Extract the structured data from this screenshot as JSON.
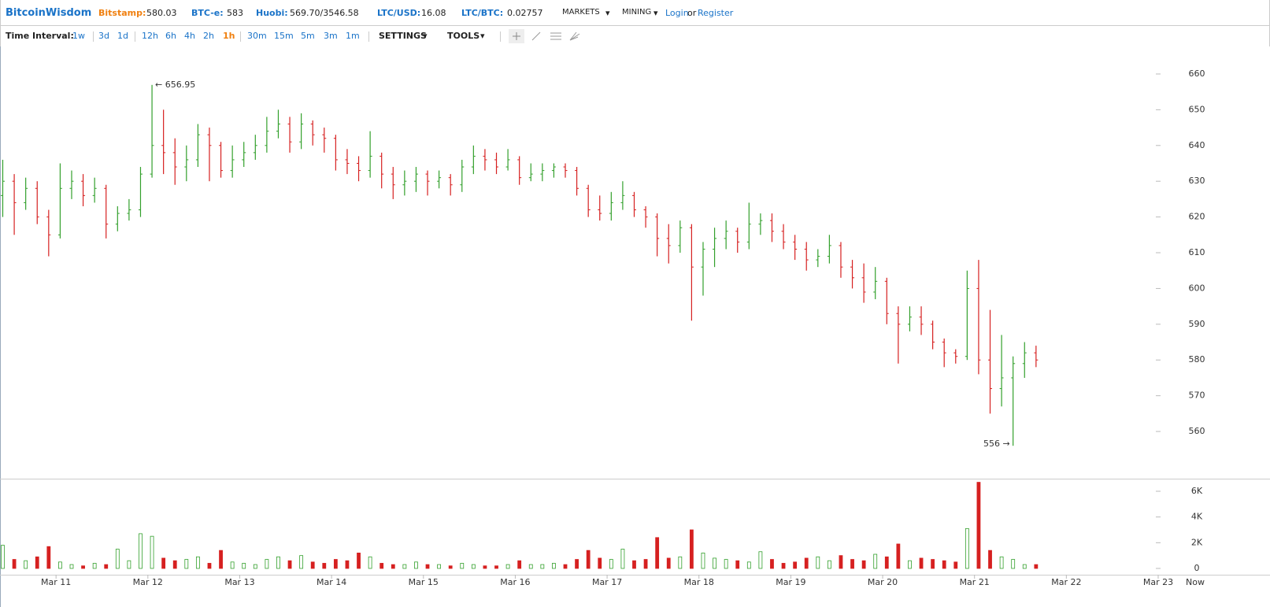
{
  "header": {
    "brand": "BitcoinWisdom",
    "tickers": [
      {
        "label": "Bitstamp:",
        "value": "580.03"
      },
      {
        "label": "BTC-e:",
        "value": "583"
      },
      {
        "label": "Huobi:",
        "value": "569.70/3546.58"
      },
      {
        "label": "LTC/USD:",
        "value": "16.08"
      },
      {
        "label": "LTC/BTC:",
        "value": "0.02757"
      }
    ],
    "menus": [
      "MARKETS",
      "MINING"
    ],
    "login": "Login",
    "or": "or",
    "register": "Register"
  },
  "toolbar": {
    "label": "Time Interval:",
    "intervals": [
      "1w",
      "3d",
      "1d",
      "12h",
      "6h",
      "4h",
      "2h",
      "1h",
      "30m",
      "15m",
      "5m",
      "3m",
      "1m"
    ],
    "active": "1h",
    "menus": [
      "SETTINGS",
      "TOOLS"
    ]
  },
  "chart_data": {
    "type": "ohlc",
    "colors": {
      "up": "#33a02c",
      "down": "#d62020"
    },
    "x": [
      10.42,
      10.545,
      10.67,
      10.795,
      10.92,
      11.045,
      11.17,
      11.295,
      11.42,
      11.545,
      11.67,
      11.795,
      11.92,
      12.045,
      12.17,
      12.295,
      12.42,
      12.545,
      12.67,
      12.795,
      12.92,
      13.045,
      13.17,
      13.295,
      13.42,
      13.545,
      13.67,
      13.795,
      13.92,
      14.045,
      14.17,
      14.295,
      14.42,
      14.545,
      14.67,
      14.795,
      14.92,
      15.045,
      15.17,
      15.295,
      15.42,
      15.545,
      15.67,
      15.795,
      15.92,
      16.045,
      16.17,
      16.295,
      16.42,
      16.545,
      16.67,
      16.795,
      16.92,
      17.045,
      17.17,
      17.295,
      17.42,
      17.545,
      17.67,
      17.795,
      17.92,
      18.045,
      18.17,
      18.295,
      18.42,
      18.545,
      18.67,
      18.795,
      18.92,
      19.045,
      19.17,
      19.295,
      19.42,
      19.545,
      19.67,
      19.795,
      19.92,
      20.045,
      20.17,
      20.295,
      20.42,
      20.545,
      20.67,
      20.795,
      20.92,
      21.045,
      21.17,
      21.295,
      21.42,
      21.545,
      21.67
    ],
    "open": [
      626,
      630,
      624,
      628,
      620,
      615,
      628,
      630,
      626,
      628,
      618,
      621,
      622,
      632,
      640,
      638,
      634,
      636,
      643,
      640,
      633,
      636,
      638,
      640,
      644,
      646,
      641,
      646,
      643,
      642,
      636,
      635,
      633,
      637,
      632,
      629,
      630,
      632,
      630,
      631,
      629,
      634,
      637,
      636,
      634,
      636,
      631,
      632,
      633,
      634,
      633,
      628,
      622,
      621,
      624,
      626,
      622,
      620,
      614,
      612,
      617,
      606,
      611,
      614,
      616,
      613,
      618,
      619,
      616,
      613,
      611,
      608,
      609,
      612,
      606,
      603,
      599,
      602,
      593,
      590,
      592,
      590,
      585,
      582,
      581,
      600,
      580,
      572,
      575,
      579,
      582
    ],
    "high": [
      636,
      632,
      631,
      630,
      622,
      635,
      633,
      632,
      631,
      629,
      623,
      625,
      634,
      656.95,
      650,
      642,
      640,
      646,
      645,
      641,
      640,
      641,
      643,
      648,
      650,
      648,
      649,
      647,
      645,
      643,
      639,
      637,
      644,
      638,
      634,
      633,
      634,
      633,
      633,
      632,
      636,
      640,
      639,
      638,
      639,
      637,
      635,
      635,
      635,
      635,
      634,
      629,
      626,
      627,
      630,
      627,
      623,
      621,
      618,
      619,
      618,
      613,
      617,
      619,
      617,
      624,
      621,
      621,
      618,
      615,
      613,
      611,
      615,
      613,
      608,
      607,
      606,
      603,
      595,
      595,
      595,
      591,
      586,
      583,
      605,
      608,
      594,
      587,
      581,
      585,
      584
    ],
    "low": [
      620,
      615,
      622,
      618,
      609,
      614,
      625,
      623,
      624,
      614,
      616,
      619,
      620,
      631,
      632,
      629,
      630,
      634,
      630,
      631,
      631,
      634,
      636,
      638,
      642,
      638,
      639,
      640,
      638,
      633,
      632,
      630,
      631,
      628,
      625,
      626,
      627,
      626,
      628,
      626,
      627,
      632,
      633,
      632,
      633,
      629,
      630,
      630,
      631,
      631,
      626,
      620,
      619,
      619,
      622,
      620,
      617,
      609,
      607,
      610,
      591,
      598,
      606,
      611,
      610,
      611,
      615,
      613,
      611,
      608,
      605,
      606,
      607,
      603,
      600,
      596,
      597,
      590,
      579,
      588,
      587,
      583,
      578,
      579,
      580,
      576,
      565,
      567,
      556,
      575,
      578
    ],
    "close": [
      630,
      624,
      628,
      620,
      615,
      628,
      630,
      626,
      628,
      618,
      621,
      622,
      632,
      640,
      638,
      634,
      636,
      643,
      640,
      633,
      636,
      638,
      640,
      644,
      646,
      641,
      646,
      643,
      642,
      636,
      635,
      633,
      637,
      632,
      629,
      630,
      632,
      630,
      631,
      629,
      634,
      637,
      636,
      634,
      636,
      631,
      632,
      633,
      634,
      633,
      628,
      622,
      621,
      624,
      626,
      622,
      620,
      614,
      612,
      617,
      606,
      611,
      614,
      616,
      613,
      618,
      619,
      616,
      613,
      611,
      608,
      609,
      612,
      606,
      603,
      599,
      602,
      593,
      590,
      592,
      590,
      585,
      582,
      581,
      600,
      580,
      572,
      575,
      579,
      582,
      580
    ],
    "volume": [
      1800,
      700,
      600,
      900,
      1700,
      500,
      300,
      200,
      400,
      300,
      1500,
      600,
      2700,
      2500,
      800,
      600,
      700,
      900,
      400,
      1400,
      500,
      400,
      300,
      700,
      900,
      600,
      1000,
      500,
      400,
      700,
      600,
      1200,
      900,
      400,
      300,
      300,
      500,
      300,
      300,
      200,
      400,
      300,
      200,
      200,
      300,
      600,
      300,
      300,
      400,
      300,
      700,
      1400,
      800,
      700,
      1500,
      600,
      700,
      2400,
      800,
      900,
      3000,
      1200,
      800,
      700,
      600,
      500,
      1300,
      700,
      400,
      500,
      800,
      900,
      600,
      1000,
      700,
      600,
      1100,
      900,
      1900,
      600,
      800,
      700,
      600,
      500,
      3100,
      6700,
      1400,
      900,
      700,
      300,
      300
    ],
    "annotations": [
      {
        "text": "← 656.95",
        "index": 13,
        "at": "high"
      },
      {
        "text": "556 →",
        "index": 88,
        "at": "low"
      }
    ],
    "xlim": [
      10.39,
      23
    ],
    "xticks": [
      {
        "value": 11,
        "label": "Mar 11"
      },
      {
        "value": 12,
        "label": "Mar 12"
      },
      {
        "value": 13,
        "label": "Mar 13"
      },
      {
        "value": 14,
        "label": "Mar 14"
      },
      {
        "value": 15,
        "label": "Mar 15"
      },
      {
        "value": 16,
        "label": "Mar 16"
      },
      {
        "value": 17,
        "label": "Mar 17"
      },
      {
        "value": 18,
        "label": "Mar 18"
      },
      {
        "value": 19,
        "label": "Mar 19"
      },
      {
        "value": 20,
        "label": "Mar 20"
      },
      {
        "value": 21,
        "label": "Mar 21"
      },
      {
        "value": 22,
        "label": "Mar 22"
      },
      {
        "value": 23,
        "label": "Mar 23"
      }
    ],
    "now_label": "Now",
    "ylim": [
      546.8,
      667.7
    ],
    "yticks": [
      560,
      570,
      580,
      590,
      600,
      610,
      620,
      630,
      640,
      650,
      660
    ],
    "volume_ylim": [
      -490,
      6980
    ],
    "volume_yticks": [
      0,
      {
        "value": 2000,
        "label": "2K"
      },
      {
        "value": 4000,
        "label": "4K"
      },
      {
        "value": 6000,
        "label": "6K"
      }
    ]
  }
}
